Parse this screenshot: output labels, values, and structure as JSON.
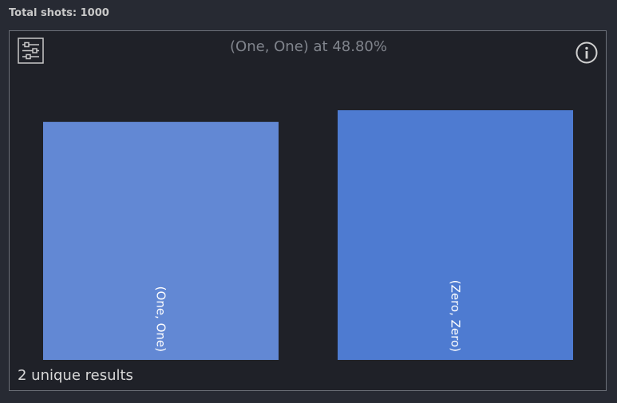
{
  "header": {
    "total_shots_label": "Total shots: 1000"
  },
  "histogram": {
    "title": "(One, One) at 48.80%",
    "footer": "2 unique results",
    "settings_icon": "sliders-icon",
    "info_icon": "info-icon"
  },
  "chart_data": {
    "type": "bar",
    "categories": [
      "(One, One)",
      "(Zero, Zero)"
    ],
    "values": [
      488,
      512
    ],
    "colors": [
      "#6288d4",
      "#4e7bd1"
    ],
    "title": "",
    "xlabel": "",
    "ylabel": "",
    "ylim": [
      0,
      540
    ]
  }
}
